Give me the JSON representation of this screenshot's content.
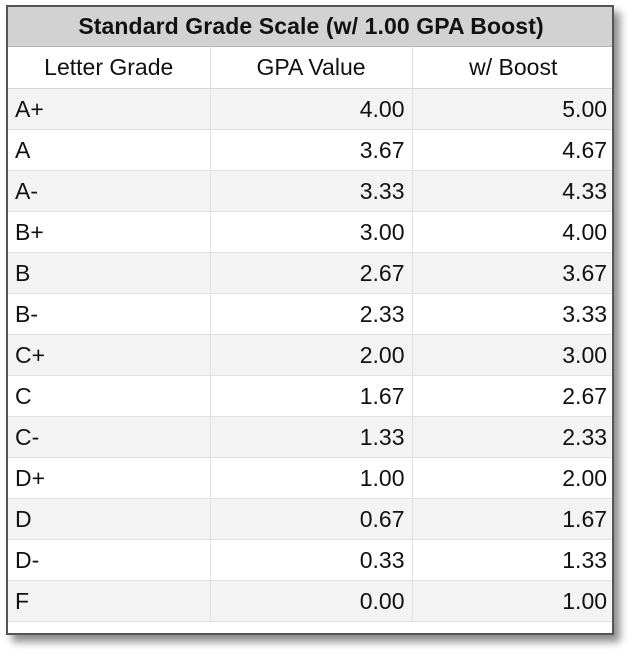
{
  "table": {
    "title": "Standard Grade Scale (w/ 1.00 GPA Boost)",
    "headers": [
      "Letter Grade",
      "GPA Value",
      "w/ Boost"
    ],
    "rows": [
      {
        "grade": "A+",
        "gpa": "4.00",
        "boost": "5.00"
      },
      {
        "grade": "A",
        "gpa": "3.67",
        "boost": "4.67"
      },
      {
        "grade": "A-",
        "gpa": "3.33",
        "boost": "4.33"
      },
      {
        "grade": "B+",
        "gpa": "3.00",
        "boost": "4.00"
      },
      {
        "grade": "B",
        "gpa": "2.67",
        "boost": "3.67"
      },
      {
        "grade": "B-",
        "gpa": "2.33",
        "boost": "3.33"
      },
      {
        "grade": "C+",
        "gpa": "2.00",
        "boost": "3.00"
      },
      {
        "grade": "C",
        "gpa": "1.67",
        "boost": "2.67"
      },
      {
        "grade": "C-",
        "gpa": "1.33",
        "boost": "2.33"
      },
      {
        "grade": "D+",
        "gpa": "1.00",
        "boost": "2.00"
      },
      {
        "grade": "D",
        "gpa": "0.67",
        "boost": "1.67"
      },
      {
        "grade": "D-",
        "gpa": "0.33",
        "boost": "1.33"
      },
      {
        "grade": "F",
        "gpa": "0.00",
        "boost": "1.00"
      }
    ]
  },
  "colors": {
    "title_background": "#d2d2d2",
    "odd_row_background": "#f3f3f3",
    "even_row_background": "#ffffff",
    "frame_border": "#555555",
    "text": "#111111"
  }
}
